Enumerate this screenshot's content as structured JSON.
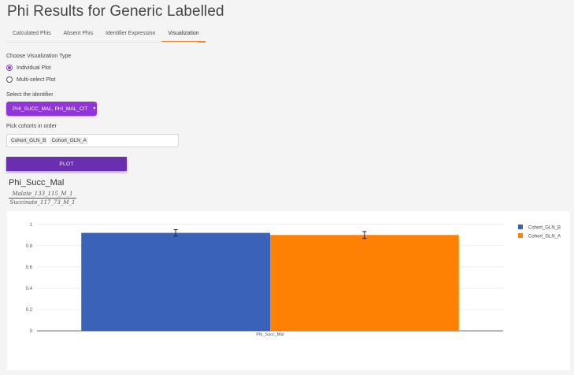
{
  "page": {
    "title": "Phi Results for Generic Labelled"
  },
  "tabs": [
    {
      "label": "Calculated Phis",
      "active": false
    },
    {
      "label": "Absent Phis",
      "active": false
    },
    {
      "label": "Identifier Expression",
      "active": false
    },
    {
      "label": "Visualization",
      "active": true
    }
  ],
  "viz_type": {
    "label": "Choose Visualization Type",
    "options": [
      {
        "label": "Individual Plot",
        "checked": true
      },
      {
        "label": "Multi-select Plot",
        "checked": false
      }
    ]
  },
  "identifier": {
    "label": "Select the identifier",
    "value": "PHI_SUCC_MAL, PHI_MAL_CIT"
  },
  "cohorts": {
    "label": "Pick cohorts in order",
    "selected": [
      "Cohort_GLN_B",
      "Cohort_GLN_A"
    ]
  },
  "plot_button": {
    "label": "PLOT"
  },
  "plot": {
    "title": "Phi_Succ_Mal",
    "formula_numerator": "Malate_133_115_M_1",
    "formula_denominator": "Succinate_117_73_M_1"
  },
  "colors": {
    "accent": "#9036d6",
    "plot_button": "#6a2fb0",
    "tab_underline": "#e8852a"
  },
  "chart_data": {
    "type": "bar",
    "categories": [
      "Phi_Succ_Mal"
    ],
    "series": [
      {
        "name": "Cohort_GLN_B",
        "values": [
          0.92
        ],
        "error": [
          0.06
        ],
        "color": "#3a63b8"
      },
      {
        "name": "Cohort_GLN_A",
        "values": [
          0.9
        ],
        "error": [
          0.065
        ],
        "color": "#ff8103"
      }
    ],
    "yticks": [
      0,
      0.2,
      0.4,
      0.6,
      0.8,
      1
    ],
    "ytick_labels": [
      "0",
      "0.2",
      "0.4",
      "0.6",
      "0.8",
      "1"
    ],
    "ylim": [
      0,
      1.05
    ],
    "grid": true,
    "legend_position": "top-right"
  }
}
